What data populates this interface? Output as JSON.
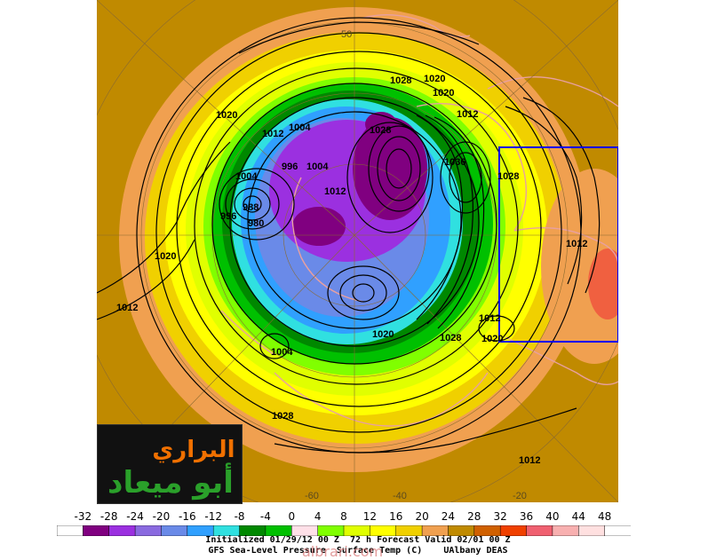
{
  "map": {
    "isobar_labels": [
      {
        "text": "1020"
      },
      {
        "text": "1028"
      },
      {
        "text": "1020"
      },
      {
        "text": "1020"
      },
      {
        "text": "1012"
      },
      {
        "text": "1004"
      },
      {
        "text": "1028"
      },
      {
        "text": "1012"
      },
      {
        "text": "1004"
      },
      {
        "text": "996"
      },
      {
        "text": "1004"
      },
      {
        "text": "1036"
      },
      {
        "text": "1028"
      },
      {
        "text": "1012"
      },
      {
        "text": "996"
      },
      {
        "text": "988"
      },
      {
        "text": "980"
      },
      {
        "text": "1012"
      },
      {
        "text": "1020"
      },
      {
        "text": "1012"
      },
      {
        "text": "1020"
      },
      {
        "text": "1004"
      },
      {
        "text": "1028"
      },
      {
        "text": "1020"
      },
      {
        "text": "1012"
      },
      {
        "text": "1028"
      },
      {
        "text": "1012"
      }
    ],
    "lat_labels": [
      {
        "text": "-60"
      },
      {
        "text": "-40"
      },
      {
        "text": "-20"
      },
      {
        "text": "50"
      }
    ]
  },
  "colors": {
    "ocean_outer": "#c08a00",
    "land_outline": "#e8a0a0",
    "isobar": "#000000",
    "box": "#0000ff"
  },
  "colorbar": {
    "labels": [
      "-32",
      "-28",
      "-24",
      "-20",
      "-16",
      "-12",
      "-8",
      "-4",
      "0",
      "4",
      "8",
      "12",
      "16",
      "20",
      "24",
      "28",
      "32",
      "36",
      "40",
      "44",
      "48"
    ],
    "swatches": [
      "#ffffff",
      "#800080",
      "#9b30e0",
      "#8a6ae0",
      "#6a8ae8",
      "#30a0ff",
      "#30e0e0",
      "#008800",
      "#00c000",
      "#ffe0e8",
      "#80ff00",
      "#e0ff00",
      "#ffff00",
      "#f0d000",
      "#f0a050",
      "#c08a00",
      "#d06000",
      "#f04000",
      "#f06070",
      "#f8b0b0",
      "#ffe0e0",
      "#ffffff"
    ]
  },
  "footer": {
    "line1": "Initialized 01/29/12 00 Z  72 h Forecast Valid 02/01 00 Z",
    "line2": "GFS Sea-Level Pressure  Surface Temp (C)    UAlbany DEAS"
  },
  "watermark": {
    "logo_line1": "البراري",
    "logo_line2": "أبو ميعاد",
    "site": "albrari.com"
  }
}
